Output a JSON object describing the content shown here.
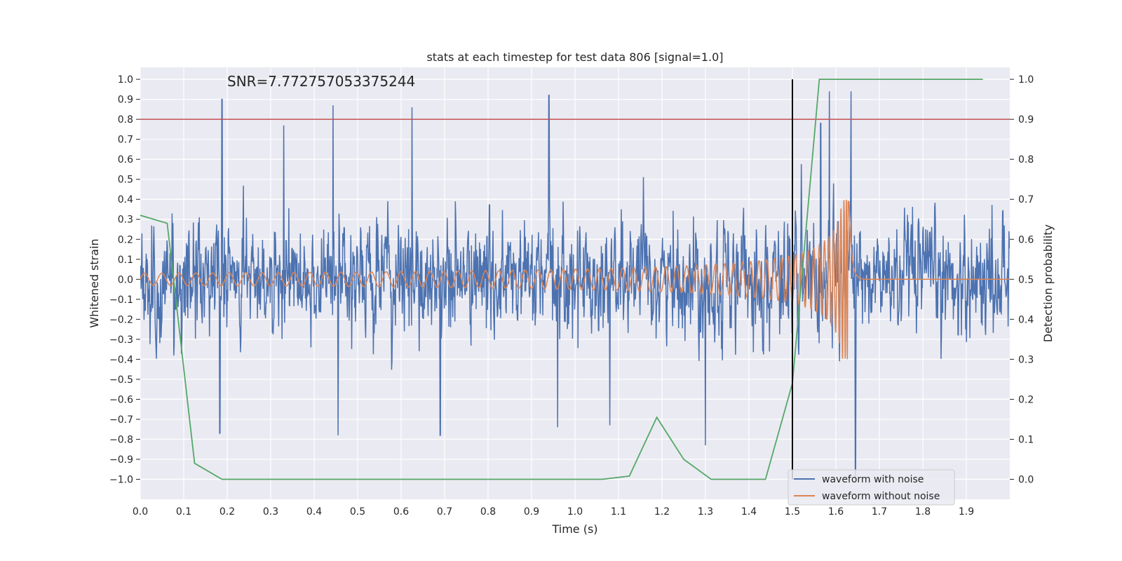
{
  "chart_data": {
    "type": "line",
    "title": "stats at each timestep for test data 806 [signal=1.0]",
    "xlabel": "Time (s)",
    "ylabel": "Whitened strain",
    "y2label": "Detection probability",
    "xlim": [
      0.0,
      2.0
    ],
    "ylim": [
      -1.1,
      1.06
    ],
    "y2lim": [
      -0.05,
      1.03
    ],
    "xticks": [
      "0.0",
      "0.1",
      "0.2",
      "0.3",
      "0.4",
      "0.5",
      "0.6",
      "0.7",
      "0.8",
      "0.9",
      "1.0",
      "1.1",
      "1.2",
      "1.3",
      "1.4",
      "1.5",
      "1.6",
      "1.7",
      "1.8",
      "1.9"
    ],
    "yticks": [
      "1.0",
      "0.9",
      "0.8",
      "0.7",
      "0.6",
      "0.5",
      "0.4",
      "0.3",
      "0.2",
      "0.1",
      "0.0",
      "−0.1",
      "−0.2",
      "−0.3",
      "−0.4",
      "−0.5",
      "−0.6",
      "−0.7",
      "−0.8",
      "−0.9",
      "−1.0"
    ],
    "y2ticks": [
      "0.0",
      "0.1",
      "0.2",
      "0.3",
      "0.4",
      "0.5",
      "0.6",
      "0.7",
      "0.8",
      "0.9",
      "1.0"
    ],
    "grid": true,
    "legend_position": "lower-right",
    "annotation": "SNR=7.772757053375244",
    "threshold": {
      "axis": "y2",
      "value": 0.9,
      "color": "#c44e52"
    },
    "marker_time": {
      "x": 1.5,
      "color": "#000000"
    },
    "series": [
      {
        "name": "waveform with noise",
        "color": "#4c72b0",
        "axis": "y",
        "peaks": [
          {
            "x": 0.188,
            "y": 0.9
          },
          {
            "x": 0.183,
            "y": -0.77
          },
          {
            "x": 0.33,
            "y": 0.77
          },
          {
            "x": 0.443,
            "y": 0.87
          },
          {
            "x": 0.455,
            "y": -0.78
          },
          {
            "x": 0.625,
            "y": 0.86
          },
          {
            "x": 0.69,
            "y": -0.78
          },
          {
            "x": 0.94,
            "y": 0.92
          },
          {
            "x": 0.96,
            "y": -0.74
          },
          {
            "x": 1.08,
            "y": -0.73
          },
          {
            "x": 1.3,
            "y": -0.83
          },
          {
            "x": 1.565,
            "y": 0.78
          },
          {
            "x": 1.585,
            "y": 0.94
          },
          {
            "x": 1.635,
            "y": 0.94
          },
          {
            "x": 1.645,
            "y": -1.0
          }
        ]
      },
      {
        "name": "waveform without noise",
        "color": "#dd8452",
        "axis": "y",
        "chirp": {
          "f0": 25,
          "t_merger": 1.63,
          "amp_start": 0.03,
          "amp_peak": 0.4
        }
      },
      {
        "name": "",
        "color": "#55a868",
        "axis": "y2",
        "x": [
          0.0,
          0.062,
          0.125,
          0.188,
          0.25,
          0.313,
          0.375,
          0.438,
          0.5,
          0.563,
          0.625,
          0.688,
          0.75,
          0.813,
          0.875,
          0.938,
          1.0,
          1.062,
          1.125,
          1.188,
          1.25,
          1.313,
          1.375,
          1.438,
          1.5,
          1.562,
          1.625,
          1.688,
          1.75,
          1.813,
          1.875,
          1.938
        ],
        "y": [
          0.66,
          0.64,
          0.04,
          0.0,
          0.0,
          0.0,
          0.0,
          0.0,
          0.0,
          0.0,
          0.0,
          0.0,
          0.0,
          0.0,
          0.0,
          0.0,
          0.0,
          0.0,
          0.008,
          0.155,
          0.05,
          0.0,
          0.0,
          0.0,
          0.24,
          1.0,
          1.0,
          1.0,
          1.0,
          1.0,
          1.0,
          1.0
        ]
      }
    ]
  }
}
